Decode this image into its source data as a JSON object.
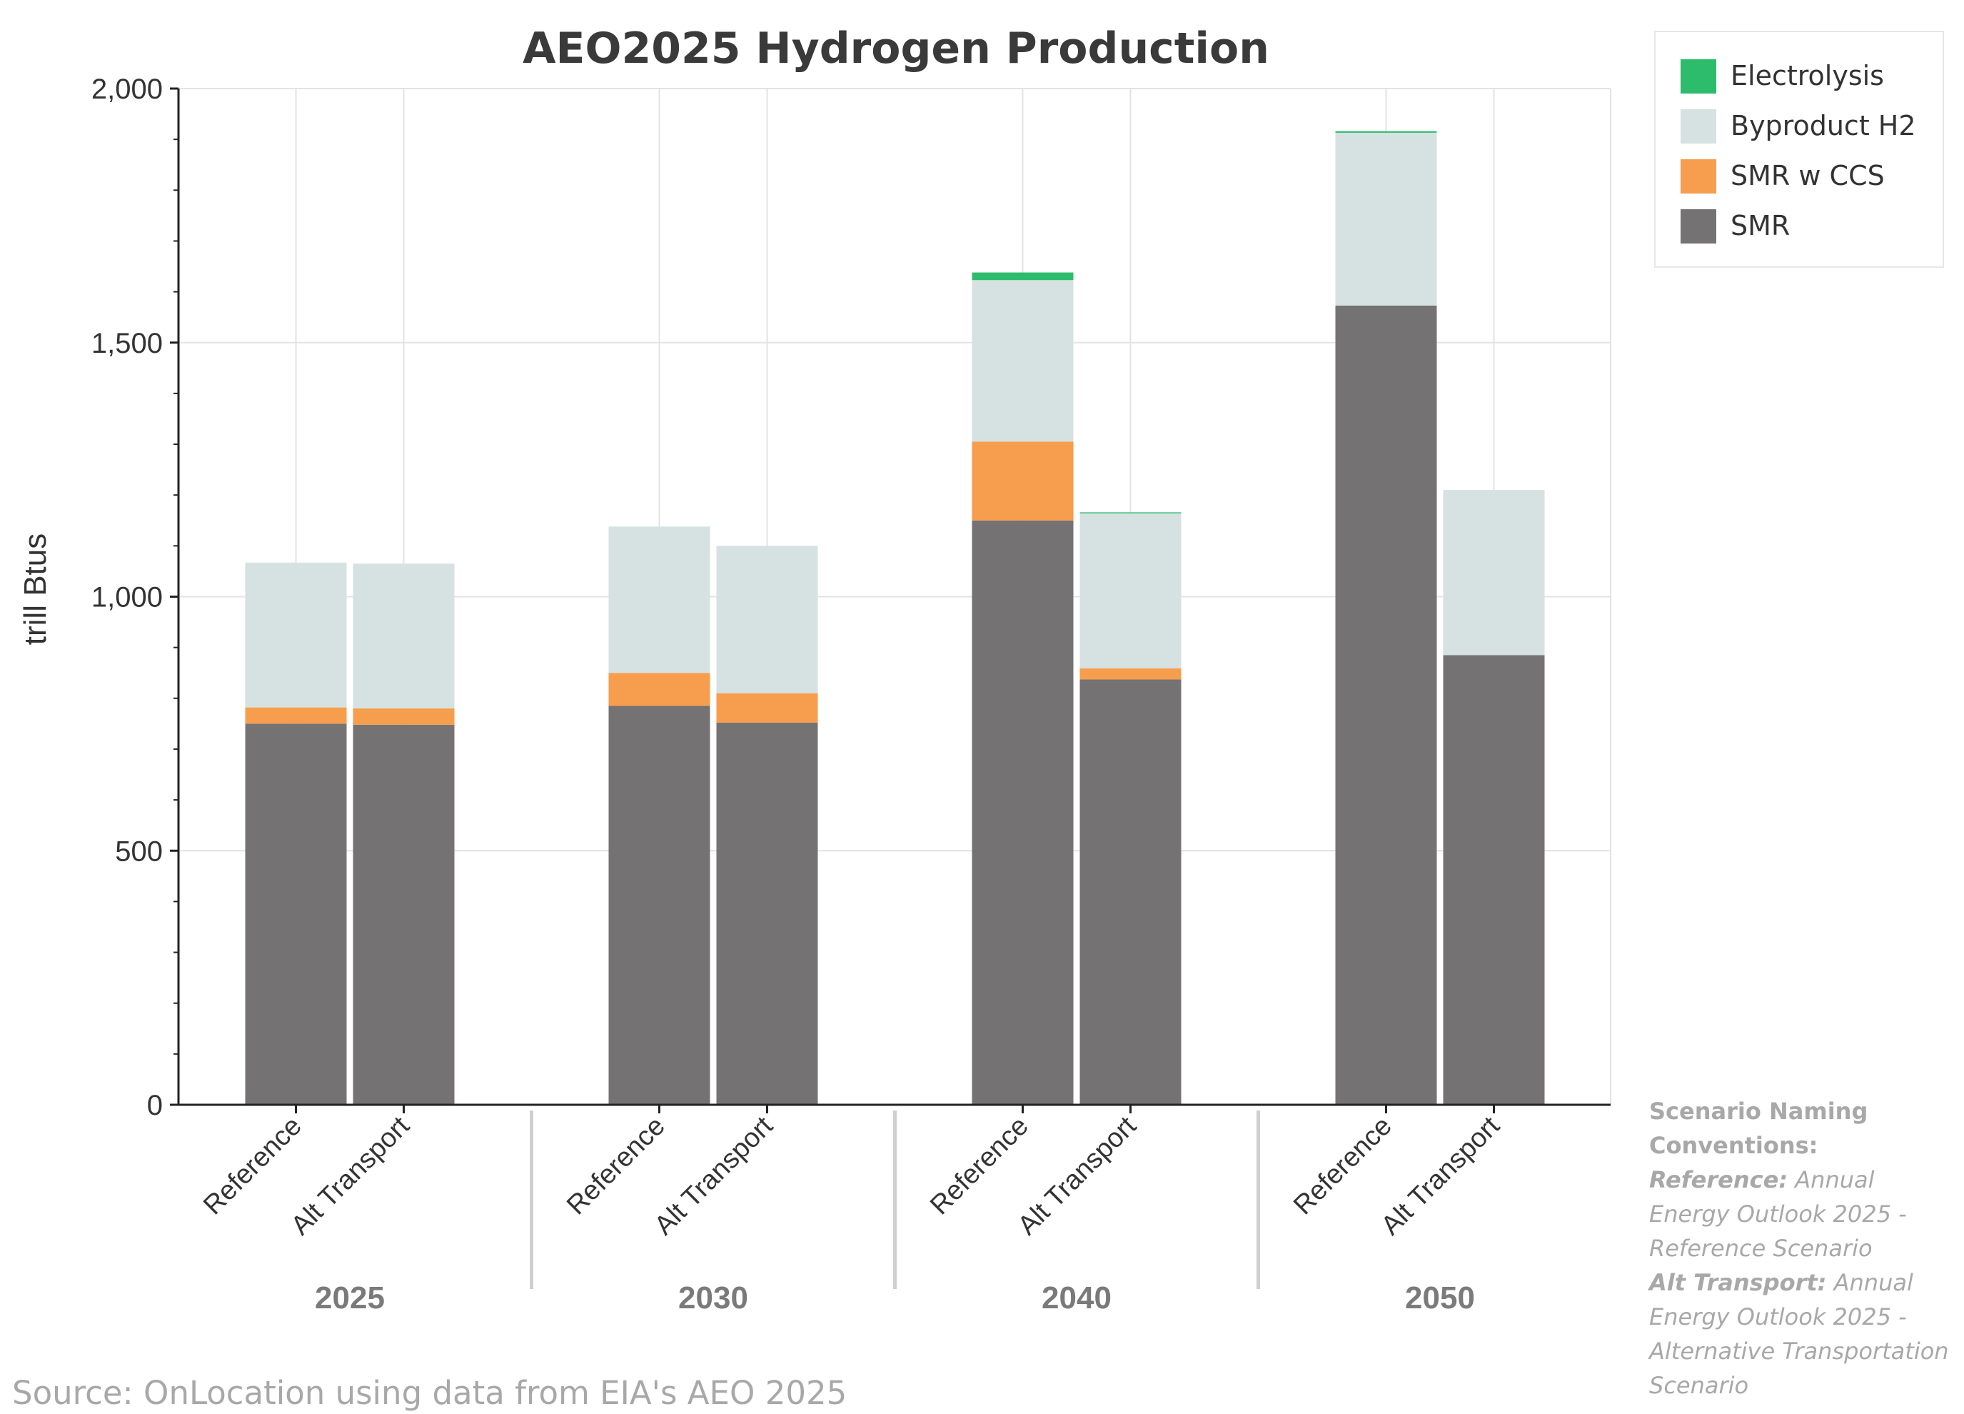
{
  "chart_data": {
    "type": "bar",
    "stacked": true,
    "title": "AEO2025 Hydrogen Production",
    "ylabel": "trill Btus",
    "xlabel": "",
    "ylim": [
      0,
      2000
    ],
    "yticks": [
      0,
      500,
      1000,
      1500,
      2000
    ],
    "ytick_labels": [
      "0",
      "500",
      "1,000",
      "1,500",
      "2,000"
    ],
    "grid": true,
    "legend_position": "top-right, outside plot",
    "groups": [
      "2025",
      "2030",
      "2040",
      "2050"
    ],
    "scenarios": [
      "Reference",
      "Alt Transport"
    ],
    "categories": [
      "2025 Reference",
      "2025 Alt Transport",
      "2030 Reference",
      "2030 Alt Transport",
      "2040 Reference",
      "2040 Alt Transport",
      "2050 Reference",
      "2050 Alt Transport"
    ],
    "series": [
      {
        "name": "SMR",
        "color": "#747272",
        "values": [
          750,
          748,
          785,
          752,
          1150,
          837,
          1573,
          885
        ]
      },
      {
        "name": "SMR w CCS",
        "color": "#f79d4e",
        "values": [
          32,
          32,
          65,
          58,
          155,
          22,
          0,
          0
        ]
      },
      {
        "name": "Byproduct H2",
        "color": "#d5e2e1",
        "values": [
          285,
          285,
          288,
          290,
          318,
          305,
          340,
          325
        ]
      },
      {
        "name": "Electrolysis",
        "color": "#2dbc6c",
        "values": [
          0,
          0,
          0,
          0,
          15,
          2,
          3,
          0
        ]
      }
    ],
    "legend_order": [
      "Electrolysis",
      "Byproduct H2",
      "SMR w CCS",
      "SMR"
    ]
  },
  "source": "Source: OnLocation using data from EIA's AEO 2025",
  "note": {
    "heading": "Scenario Naming Conventions:",
    "items": [
      {
        "key": "Reference:",
        "desc": "Annual Energy Outlook 2025 - Reference Scenario"
      },
      {
        "key": "Alt Transport:",
        "desc": "Annual Energy Outlook 2025 - Alternative Transportation Scenario"
      }
    ]
  }
}
